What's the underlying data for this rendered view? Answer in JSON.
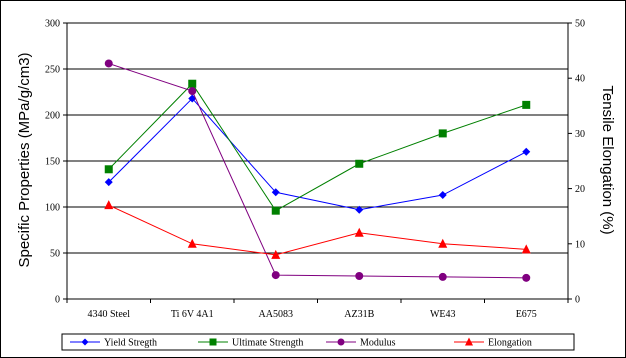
{
  "chart_data": {
    "type": "line",
    "categories": [
      "4340 Steel",
      "Ti 6V 4A1",
      "AA5083",
      "AZ31B",
      "WE43",
      "E675"
    ],
    "ylabel": "Specific Properties (MPa/g/cm3)",
    "y2label": "Tensile Elongation (%)",
    "ylim": [
      0,
      300
    ],
    "y2lim": [
      0,
      50
    ],
    "yticks": [
      "0",
      "50",
      "100",
      "150",
      "200",
      "250",
      "300"
    ],
    "y2ticks": [
      "0",
      "10",
      "20",
      "30",
      "40",
      "50"
    ],
    "grid": true,
    "legend_position": "bottom",
    "series": [
      {
        "name": "Yield Stregth",
        "axis": "left",
        "color": "#0000FF",
        "marker": "diamond",
        "values": [
          127,
          218,
          116,
          97,
          113,
          160
        ]
      },
      {
        "name": "Ultimate Strength",
        "axis": "left",
        "color": "#008000",
        "marker": "square",
        "values": [
          141,
          234,
          96,
          147,
          180,
          211
        ]
      },
      {
        "name": "Modulus",
        "axis": "left",
        "color": "#800080",
        "marker": "circle",
        "values": [
          256,
          226,
          26,
          25,
          24,
          23
        ]
      },
      {
        "name": "Elongation",
        "axis": "right",
        "color": "#FF0000",
        "marker": "triangle",
        "values": [
          17,
          10,
          8,
          12,
          10,
          9
        ]
      }
    ]
  }
}
